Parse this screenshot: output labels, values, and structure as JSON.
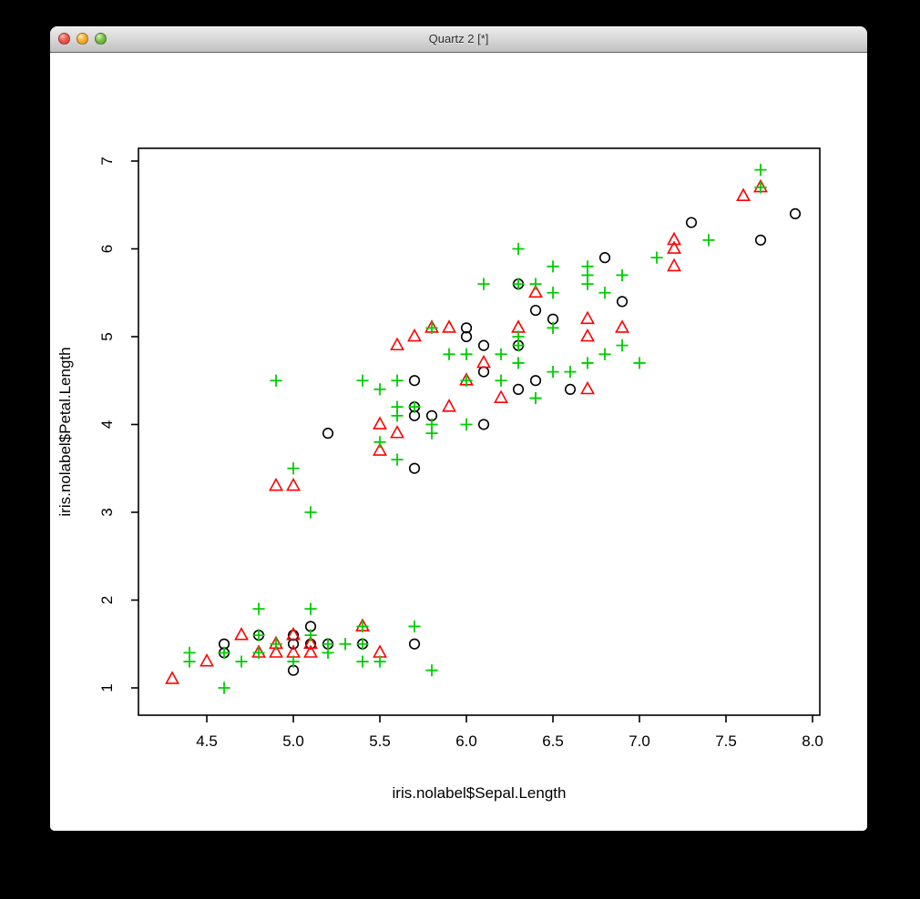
{
  "window": {
    "title": "Quartz 2 [*]",
    "controls": {
      "close_label": "close",
      "minimize_label": "minimize",
      "zoom_label": "zoom"
    }
  },
  "chart_data": {
    "type": "scatter",
    "title": "",
    "xlabel": "iris.nolabel$Sepal.Length",
    "ylabel": "iris.nolabel$Petal.Length",
    "x_tick_values": [
      4.5,
      5.0,
      5.5,
      6.0,
      6.5,
      7.0,
      7.5,
      8.0
    ],
    "x_tick_labels": [
      "4.5",
      "5.0",
      "5.5",
      "6.0",
      "6.5",
      "7.0",
      "7.5",
      "8.0"
    ],
    "y_tick_values": [
      1,
      2,
      3,
      4,
      5,
      6,
      7
    ],
    "y_tick_labels": [
      "1",
      "2",
      "3",
      "4",
      "5",
      "6",
      "7"
    ],
    "xlim": [
      4.105,
      8.042
    ],
    "ylim": [
      0.689,
      7.145
    ],
    "grid": false,
    "legend": "none",
    "axis_color": "#000000",
    "series": [
      {
        "name": "black-open-circles",
        "symbol": "open-circle",
        "color": "#000000",
        "points": [
          [
            4.6,
            1.5
          ],
          [
            4.6,
            1.4
          ],
          [
            4.8,
            1.6
          ],
          [
            5.0,
            1.6
          ],
          [
            5.0,
            1.5
          ],
          [
            5.0,
            1.2
          ],
          [
            5.1,
            1.7
          ],
          [
            5.1,
            1.5
          ],
          [
            5.2,
            1.5
          ],
          [
            5.4,
            1.5
          ],
          [
            5.7,
            1.5
          ],
          [
            5.2,
            3.9
          ],
          [
            5.7,
            3.5
          ],
          [
            5.7,
            4.2
          ],
          [
            5.7,
            4.1
          ],
          [
            5.8,
            4.1
          ],
          [
            5.7,
            4.5
          ],
          [
            6.0,
            5.1
          ],
          [
            6.0,
            5.0
          ],
          [
            6.1,
            4.9
          ],
          [
            6.1,
            4.6
          ],
          [
            6.1,
            4.0
          ],
          [
            6.3,
            4.9
          ],
          [
            6.3,
            4.4
          ],
          [
            6.4,
            4.5
          ],
          [
            6.4,
            5.3
          ],
          [
            6.5,
            5.2
          ],
          [
            6.6,
            4.4
          ],
          [
            6.9,
            5.4
          ],
          [
            6.3,
            5.6
          ],
          [
            6.8,
            5.9
          ],
          [
            7.3,
            6.3
          ],
          [
            7.7,
            6.1
          ],
          [
            7.9,
            6.4
          ]
        ]
      },
      {
        "name": "red-open-triangles",
        "symbol": "open-triangle",
        "color": "#FF0000",
        "points": [
          [
            4.3,
            1.1
          ],
          [
            4.5,
            1.3
          ],
          [
            4.7,
            1.6
          ],
          [
            4.8,
            1.4
          ],
          [
            4.9,
            1.5
          ],
          [
            4.9,
            1.4
          ],
          [
            5.0,
            1.6
          ],
          [
            5.0,
            1.4
          ],
          [
            5.1,
            1.5
          ],
          [
            5.1,
            1.4
          ],
          [
            5.4,
            1.7
          ],
          [
            5.5,
            1.4
          ],
          [
            4.9,
            3.3
          ],
          [
            5.0,
            3.3
          ],
          [
            5.5,
            3.7
          ],
          [
            5.6,
            3.9
          ],
          [
            5.5,
            4.0
          ],
          [
            5.9,
            4.2
          ],
          [
            6.2,
            4.3
          ],
          [
            6.7,
            4.4
          ],
          [
            6.0,
            4.5
          ],
          [
            6.1,
            4.7
          ],
          [
            5.6,
            4.9
          ],
          [
            5.7,
            5.0
          ],
          [
            5.8,
            5.1
          ],
          [
            5.9,
            5.1
          ],
          [
            6.3,
            5.1
          ],
          [
            6.7,
            5.2
          ],
          [
            6.7,
            5.0
          ],
          [
            6.9,
            5.1
          ],
          [
            6.4,
            5.5
          ],
          [
            7.2,
            6.1
          ],
          [
            7.2,
            6.0
          ],
          [
            7.2,
            5.8
          ],
          [
            7.6,
            6.6
          ],
          [
            7.7,
            6.7
          ]
        ]
      },
      {
        "name": "green-plus-signs",
        "symbol": "plus",
        "color": "#00CD00",
        "points": [
          [
            4.4,
            1.4
          ],
          [
            4.4,
            1.3
          ],
          [
            4.6,
            1.4
          ],
          [
            4.6,
            1.0
          ],
          [
            4.7,
            1.3
          ],
          [
            4.8,
            1.9
          ],
          [
            4.8,
            1.6
          ],
          [
            4.8,
            1.4
          ],
          [
            4.9,
            1.5
          ],
          [
            5.0,
            1.3
          ],
          [
            5.1,
            1.9
          ],
          [
            5.1,
            1.6
          ],
          [
            5.2,
            1.5
          ],
          [
            5.2,
            1.4
          ],
          [
            5.3,
            1.5
          ],
          [
            5.4,
            1.7
          ],
          [
            5.4,
            1.5
          ],
          [
            5.4,
            1.3
          ],
          [
            5.5,
            1.3
          ],
          [
            5.7,
            1.7
          ],
          [
            5.8,
            1.2
          ],
          [
            5.0,
            3.5
          ],
          [
            5.1,
            3.0
          ],
          [
            5.5,
            3.8
          ],
          [
            5.6,
            3.6
          ],
          [
            5.8,
            3.9
          ],
          [
            4.9,
            4.5
          ],
          [
            5.4,
            4.5
          ],
          [
            5.5,
            4.4
          ],
          [
            5.6,
            4.5
          ],
          [
            5.6,
            4.2
          ],
          [
            5.6,
            4.1
          ],
          [
            5.7,
            4.2
          ],
          [
            5.8,
            4.0
          ],
          [
            5.9,
            4.8
          ],
          [
            6.0,
            4.8
          ],
          [
            6.0,
            4.0
          ],
          [
            6.0,
            4.5
          ],
          [
            6.2,
            4.8
          ],
          [
            6.2,
            4.5
          ],
          [
            6.3,
            5.0
          ],
          [
            6.3,
            4.7
          ],
          [
            6.3,
            4.9
          ],
          [
            6.4,
            4.3
          ],
          [
            6.5,
            4.6
          ],
          [
            6.5,
            5.1
          ],
          [
            6.6,
            4.6
          ],
          [
            6.7,
            4.7
          ],
          [
            6.8,
            4.8
          ],
          [
            6.9,
            4.9
          ],
          [
            7.0,
            4.7
          ],
          [
            5.8,
            5.1
          ],
          [
            6.1,
            5.6
          ],
          [
            6.3,
            5.6
          ],
          [
            6.3,
            6.0
          ],
          [
            6.4,
            5.6
          ],
          [
            6.5,
            5.5
          ],
          [
            6.5,
            5.8
          ],
          [
            6.7,
            5.6
          ],
          [
            6.7,
            5.7
          ],
          [
            6.7,
            5.8
          ],
          [
            6.8,
            5.5
          ],
          [
            6.9,
            5.7
          ],
          [
            7.1,
            5.9
          ],
          [
            7.4,
            6.1
          ],
          [
            7.7,
            6.9
          ],
          [
            7.7,
            6.7
          ]
        ]
      }
    ]
  }
}
